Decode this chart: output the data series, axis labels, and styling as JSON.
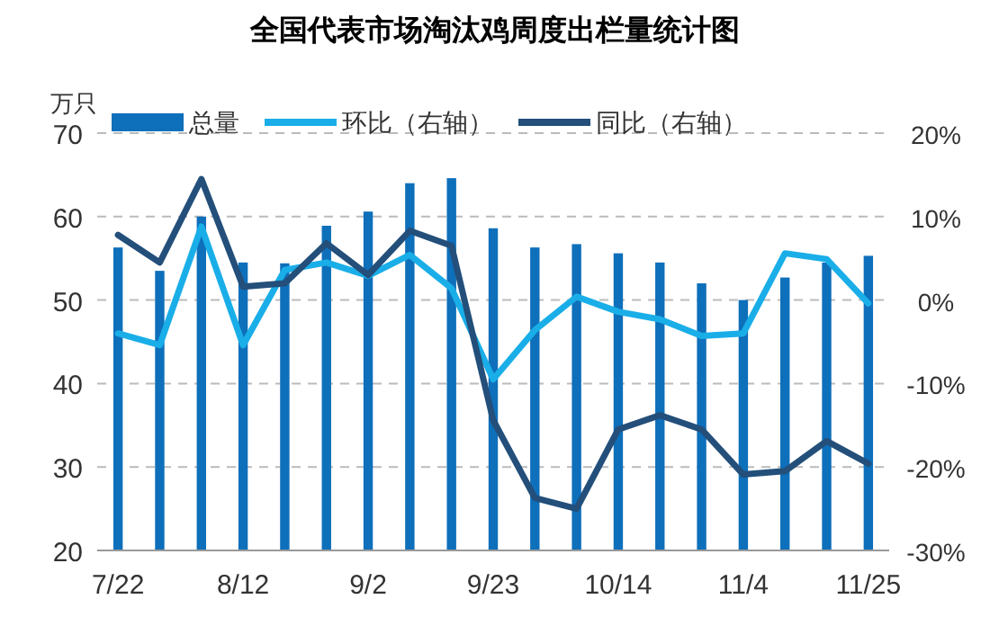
{
  "chart_data": {
    "type": "bar",
    "title": "全国代表市场淘汰鸡周度出栏量统计图",
    "ylabel": "万只",
    "categories": [
      "7/22",
      null,
      null,
      "8/12",
      null,
      null,
      "9/2",
      null,
      null,
      "9/23",
      null,
      null,
      "10/14",
      null,
      null,
      "11/4",
      null,
      null,
      "11/25"
    ],
    "series": [
      {
        "name": "总量",
        "color": "#0e6fba",
        "values": [
          56.3,
          53.5,
          60,
          54.5,
          54.4,
          58.9,
          60.6,
          64,
          64.6,
          58.6,
          56.3,
          56.7,
          55.6,
          54.5,
          52,
          50,
          52.7,
          54.5,
          55.3
        ]
      },
      {
        "name": "环比（右轴）",
        "type": "line",
        "axis": "y2",
        "color": "#1aaee8",
        "values": [
          -4,
          -5.4,
          8.8,
          -5.4,
          3.6,
          4.5,
          2.9,
          5.4,
          1.4,
          -9.5,
          -3.6,
          0.4,
          -1.4,
          -2.3,
          -4.3,
          -4,
          5.6,
          4.9,
          -0.4
        ]
      },
      {
        "name": "同比（右轴）",
        "type": "line",
        "axis": "y2",
        "color": "#234f7a",
        "values": [
          7.8,
          4.5,
          14.5,
          1.6,
          2,
          6.8,
          3,
          8.3,
          6.5,
          -14.4,
          -23.7,
          -25,
          -15.5,
          -13.8,
          -15.5,
          -20.9,
          -20.5,
          -16.9,
          -19.6
        ]
      }
    ],
    "ylim": [
      20,
      70
    ],
    "yticks": [
      20,
      30,
      40,
      50,
      60,
      70
    ],
    "y2lim": [
      -30,
      20
    ],
    "y2ticks": [
      {
        "value": -30,
        "label": "-30%"
      },
      {
        "value": -20,
        "label": "-20%"
      },
      {
        "value": -10,
        "label": "-10%"
      },
      {
        "value": 0,
        "label": "0%"
      },
      {
        "value": 10,
        "label": "10%"
      },
      {
        "value": 20,
        "label": "20%"
      }
    ],
    "grid": "y",
    "legend": "top"
  }
}
